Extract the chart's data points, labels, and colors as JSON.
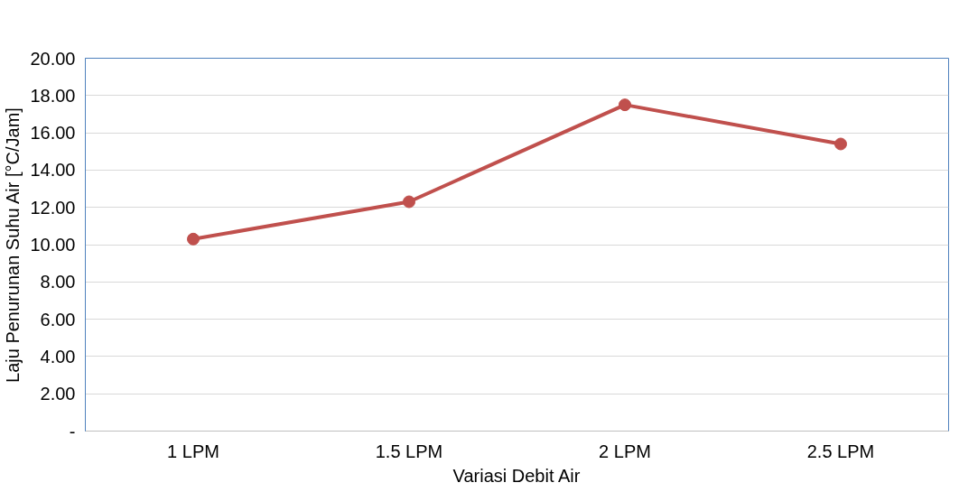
{
  "chart_data": {
    "type": "line",
    "xlabel": "Variasi Debit Air",
    "ylabel": "Laju Penurunan Suhu Air [°C/Jam]",
    "categories": [
      "1 LPM",
      "1.5 LPM",
      "2 LPM",
      "2.5 LPM"
    ],
    "series": [
      {
        "color": "#c0504d",
        "values": [
          10.3,
          12.3,
          17.5,
          15.4
        ]
      }
    ],
    "ylim": [
      0,
      20
    ],
    "yticks": [
      {
        "value": 0,
        "label": "-"
      },
      {
        "value": 2,
        "label": "2.00"
      },
      {
        "value": 4,
        "label": "4.00"
      },
      {
        "value": 6,
        "label": "6.00"
      },
      {
        "value": 8,
        "label": "8.00"
      },
      {
        "value": 10,
        "label": "10.00"
      },
      {
        "value": 12,
        "label": "12.00"
      },
      {
        "value": 14,
        "label": "14.00"
      },
      {
        "value": 16,
        "label": "16.00"
      },
      {
        "value": 18,
        "label": "18.00"
      },
      {
        "value": 20,
        "label": "20.00"
      }
    ],
    "grid": "y",
    "marker": "circle",
    "line_style": "solid"
  }
}
